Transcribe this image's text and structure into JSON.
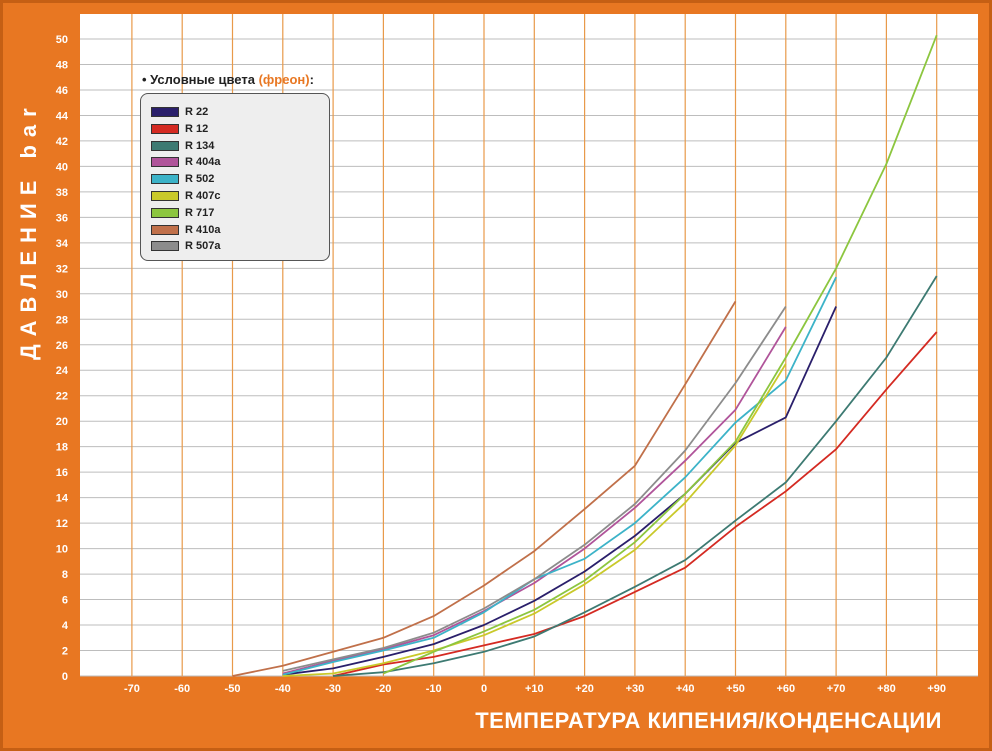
{
  "chart_data": {
    "type": "line",
    "ylabel": "ДАВЛЕНИЕ bar",
    "xlabel": "ТЕМПЕРАТУРА КИПЕНИЯ/КОНДЕНСАЦИИ",
    "xlim": [
      -80,
      99
    ],
    "ylim": [
      0,
      52
    ],
    "grid": true,
    "x_ticks": [
      -70,
      -60,
      -50,
      -40,
      -30,
      -20,
      -10,
      0,
      10,
      20,
      30,
      40,
      50,
      60,
      70,
      80,
      90
    ],
    "x_tick_labels": [
      "-70",
      "-60",
      "-50",
      "-40",
      "-30",
      "-20",
      "-10",
      "0",
      "+10",
      "+20",
      "+30",
      "+40",
      "+50",
      "+60",
      "+70",
      "+80",
      "+90"
    ],
    "y_ticks": [
      0,
      2,
      4,
      6,
      8,
      10,
      12,
      14,
      16,
      18,
      20,
      22,
      24,
      26,
      28,
      30,
      32,
      34,
      36,
      38,
      40,
      42,
      44,
      46,
      48,
      50
    ],
    "legend": {
      "title_prefix": "• Условные цвета ",
      "title_accent": "(фреон)",
      "title_suffix": ":",
      "placement": "top-left"
    },
    "series": [
      {
        "name": "R 22",
        "color": "#2a1f6b",
        "x": [
          -40,
          -30,
          -20,
          -10,
          0,
          10,
          20,
          30,
          40,
          50,
          60,
          70
        ],
        "y": [
          0.1,
          0.6,
          1.5,
          2.5,
          4.0,
          5.9,
          8.2,
          11.0,
          14.3,
          18.3,
          20.3,
          29.0
        ]
      },
      {
        "name": "R 12",
        "color": "#d42a22",
        "x": [
          -30,
          -20,
          -10,
          0,
          10,
          20,
          30,
          40,
          50,
          60,
          70,
          80,
          90
        ],
        "y": [
          0.0,
          0.9,
          1.5,
          2.4,
          3.3,
          4.7,
          6.6,
          8.5,
          11.7,
          14.5,
          17.8,
          22.5,
          27.0
        ]
      },
      {
        "name": "R 134",
        "color": "#3d7a72",
        "x": [
          -30,
          -20,
          -10,
          0,
          10,
          20,
          30,
          40,
          50,
          60,
          70,
          80,
          90
        ],
        "y": [
          0.0,
          0.3,
          1.0,
          1.9,
          3.1,
          5.0,
          7.0,
          9.1,
          12.2,
          15.2,
          20.0,
          25.0,
          31.4
        ]
      },
      {
        "name": "R 404a",
        "color": "#b0549a",
        "x": [
          -40,
          -30,
          -20,
          -10,
          0,
          10,
          20,
          30,
          40,
          50,
          60
        ],
        "y": [
          0.2,
          1.2,
          2.1,
          3.2,
          5.1,
          7.3,
          10.0,
          13.2,
          16.9,
          20.9,
          27.4
        ]
      },
      {
        "name": "R 502",
        "color": "#3cb3c8",
        "x": [
          -40,
          -30,
          -20,
          -10,
          0,
          10,
          20,
          30,
          40,
          50,
          60,
          70
        ],
        "y": [
          0.1,
          1.1,
          2.0,
          3.0,
          5.0,
          7.6,
          9.2,
          12.0,
          15.6,
          19.9,
          23.2,
          31.3
        ]
      },
      {
        "name": "R 407c",
        "color": "#c9c92a",
        "x": [
          -40,
          -30,
          -20,
          -10,
          0,
          10,
          20,
          30,
          40,
          50,
          60
        ],
        "y": [
          0.0,
          0.2,
          1.0,
          2.0,
          3.2,
          4.9,
          7.2,
          9.9,
          13.6,
          18.1,
          24.5
        ]
      },
      {
        "name": "R 717",
        "color": "#8cc63f",
        "x": [
          -20,
          -10,
          0,
          10,
          20,
          30,
          40,
          50,
          60,
          70,
          80,
          90
        ],
        "y": [
          0.2,
          1.9,
          3.5,
          5.2,
          7.5,
          10.5,
          14.3,
          18.4,
          25.0,
          32.0,
          40.2,
          50.3
        ]
      },
      {
        "name": "R 410a",
        "color": "#c0704a",
        "x": [
          -50,
          -40,
          -30,
          -20,
          -10,
          0,
          10,
          20,
          30,
          40,
          50
        ],
        "y": [
          0.0,
          0.8,
          1.9,
          3.0,
          4.7,
          7.1,
          9.8,
          13.1,
          16.5,
          22.9,
          29.4
        ]
      },
      {
        "name": "R 507a",
        "color": "#8c8c8c",
        "x": [
          -40,
          -30,
          -20,
          -10,
          0,
          10,
          20,
          30,
          40,
          50,
          60
        ],
        "y": [
          0.4,
          1.3,
          2.2,
          3.4,
          5.3,
          7.6,
          10.3,
          13.5,
          17.7,
          23.0,
          29.0
        ]
      }
    ]
  }
}
